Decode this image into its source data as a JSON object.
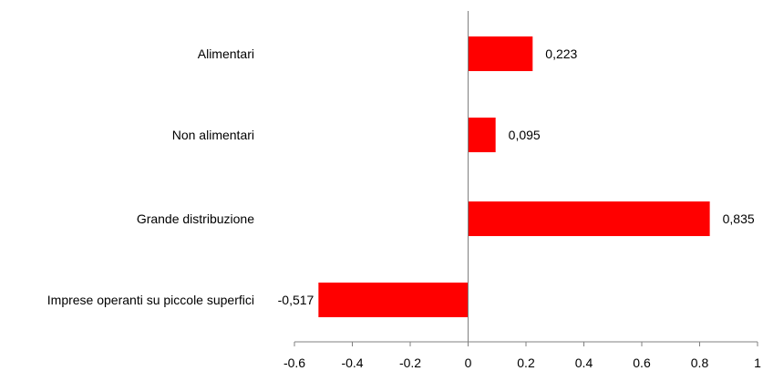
{
  "chart_data": {
    "type": "bar",
    "orientation": "horizontal",
    "categories": [
      "Alimentari",
      "Non alimentari",
      "Grande distribuzione",
      "Imprese operanti su piccole superfici"
    ],
    "values": [
      0.223,
      0.095,
      0.835,
      -0.517
    ],
    "data_labels": [
      "0,223",
      "0,095",
      "0,835",
      "-0,517"
    ],
    "xlim": [
      -0.6,
      1
    ],
    "x_ticks": [
      -0.6,
      -0.4,
      -0.2,
      0,
      0.2,
      0.4,
      0.6,
      0.8,
      1
    ],
    "x_tick_labels": [
      "-0.6",
      "-0.4",
      "-0.2",
      "0",
      "0.2",
      "0.4",
      "0.6",
      "0.8",
      "1"
    ],
    "bar_color": "#ff0000",
    "axis_color": "#808080",
    "grid": false,
    "legend": "none"
  }
}
